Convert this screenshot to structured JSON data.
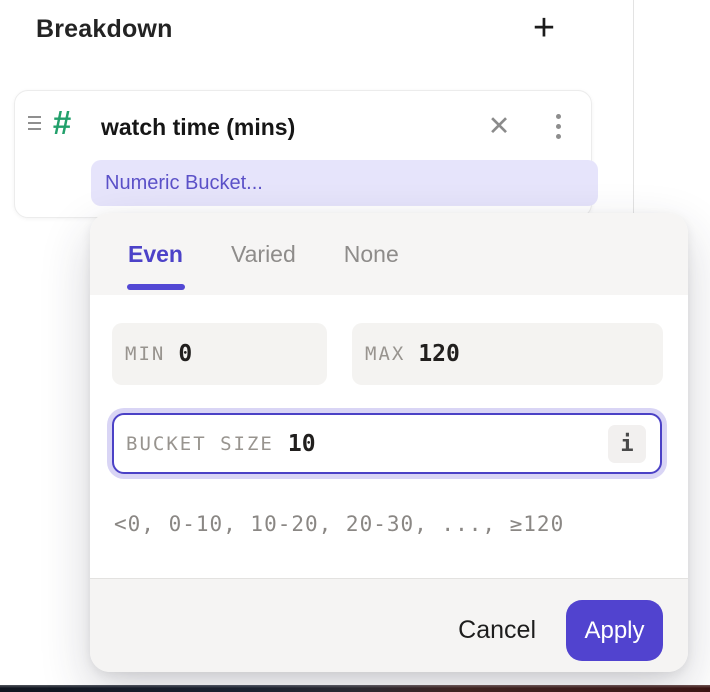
{
  "colors": {
    "accent_purple": "#5143cf",
    "tab_active_purple": "#4c42c8",
    "pill_bg": "#e6e4fb",
    "pill_text": "#5b51c8",
    "hash_green": "#22a06b",
    "field_bg": "#f4f3f1",
    "focus_ring": "#d9d5f5",
    "muted_gray": "#8e8c8a",
    "bottom_strip_left": "#10151f",
    "bottom_strip_right": "#3c1513"
  },
  "icons": {
    "add": "+",
    "close": "✕",
    "hash": "#",
    "info": "i"
  },
  "header": {
    "title": "Breakdown"
  },
  "card": {
    "property_name": "watch time (mins)",
    "bucket_pill": "Numeric Bucket..."
  },
  "popover": {
    "tabs": [
      {
        "label": "Even",
        "active": true
      },
      {
        "label": "Varied",
        "active": false
      },
      {
        "label": "None",
        "active": false
      }
    ],
    "min": {
      "label": "MIN",
      "value": "0"
    },
    "max": {
      "label": "MAX",
      "value": "120"
    },
    "bucket_size": {
      "label": "BUCKET SIZE",
      "value": "10"
    },
    "preview": "<0, 0-10, 10-20, 20-30, ..., ≥120",
    "footer": {
      "cancel_label": "Cancel",
      "apply_label": "Apply"
    }
  }
}
